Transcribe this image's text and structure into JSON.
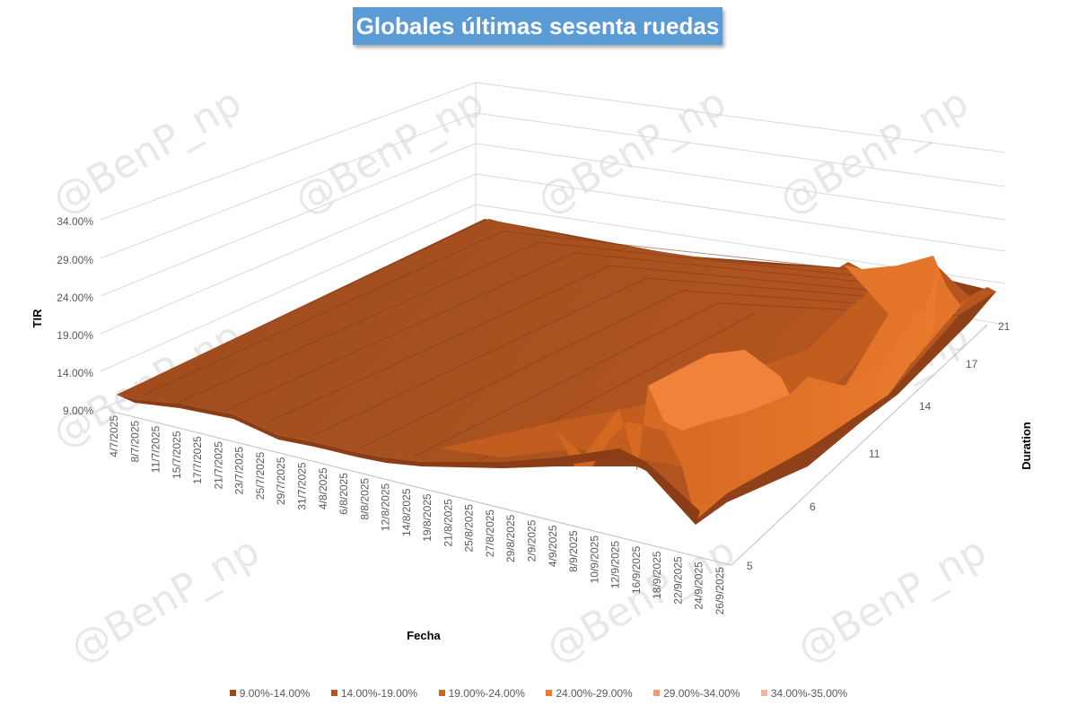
{
  "chart_data": {
    "type": "surface",
    "title": "Globales últimas sesenta ruedas",
    "zlabel": "TIR",
    "xlabel": "Fecha",
    "ylabel": "Duration",
    "zlim": [
      "9.00%",
      "34.00%"
    ],
    "z_ticks": [
      "9.00%",
      "14.00%",
      "19.00%",
      "24.00%",
      "29.00%",
      "34.00%"
    ],
    "x_ticks": [
      "4/7/2025",
      "8/7/2025",
      "11/7/2025",
      "15/7/2025",
      "17/7/2025",
      "21/7/2025",
      "23/7/2025",
      "25/7/2025",
      "29/7/2025",
      "31/7/2025",
      "4/8/2025",
      "6/8/2025",
      "8/8/2025",
      "12/8/2025",
      "14/8/2025",
      "19/8/2025",
      "21/8/2025",
      "25/8/2025",
      "27/8/2025",
      "29/8/2025",
      "2/9/2025",
      "4/9/2025",
      "8/9/2025",
      "10/9/2025",
      "12/9/2025",
      "16/9/2025",
      "18/9/2025",
      "22/9/2025",
      "24/9/2025",
      "26/9/2025"
    ],
    "y_ticks": [
      "5",
      "6",
      "11",
      "14",
      "17",
      "21"
    ],
    "surface_note_values": {
      "early_period_tir": [
        11.0,
        11.0,
        10.8,
        10.6,
        10.5,
        10.2,
        10.0,
        9.8,
        9.6,
        9.5,
        9.4,
        9.4,
        9.3,
        9.2,
        9.2,
        9.3,
        9.4,
        9.5,
        9.6,
        9.8,
        10.0,
        10.5,
        11.5,
        13.0,
        14.5,
        16.0,
        17.5,
        18.5,
        19.5,
        20.0
      ],
      "late_period_peak_tir": 26.0
    },
    "legend": [
      {
        "label": "9.00%-14.00%",
        "color": "#9e4a1e"
      },
      {
        "label": "14.00%-19.00%",
        "color": "#b8561f"
      },
      {
        "label": "19.00%-24.00%",
        "color": "#d0651f"
      },
      {
        "label": "24.00%-29.00%",
        "color": "#ea7a2d"
      },
      {
        "label": "29.00%-34.00%",
        "color": "#ee9a7a"
      },
      {
        "label": "34.00%-35.00%",
        "color": "#f2b7a3"
      }
    ]
  },
  "watermark": "@BenP_np"
}
